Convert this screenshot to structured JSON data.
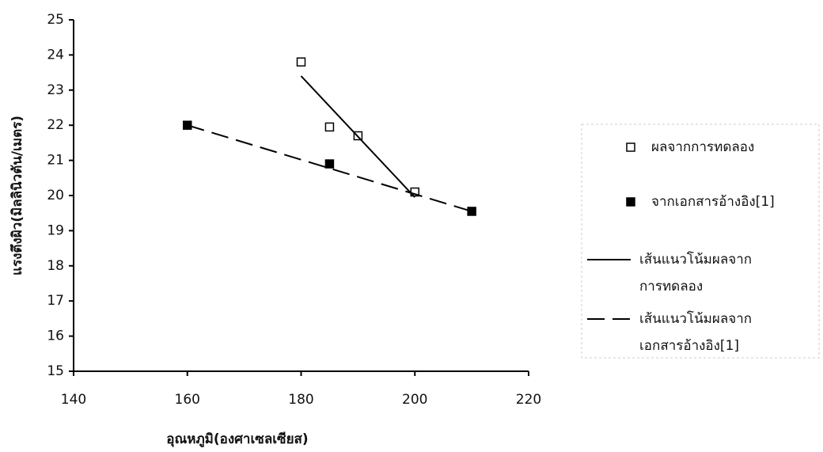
{
  "chart_data": {
    "type": "scatter",
    "xlabel": "อุณหภูมิ(องศาเซลเซียส)",
    "ylabel": "แรงตึงผิว(มิลลินิวตัน/เมตร)",
    "xlim": [
      140,
      220
    ],
    "xticks": [
      140,
      160,
      180,
      200,
      220
    ],
    "ylim": [
      15,
      25
    ],
    "yticks": [
      15,
      16,
      17,
      18,
      19,
      20,
      21,
      22,
      23,
      24,
      25
    ],
    "legend": "right",
    "series": [
      {
        "name": [
          "ผลจากการทดลอง"
        ],
        "color": "#000000",
        "marker": "open-square",
        "line": "none",
        "x": [
          180,
          185,
          190,
          200
        ],
        "values": [
          23.8,
          21.95,
          21.7,
          20.1
        ]
      },
      {
        "name": [
          "จากเอกสารอ้างอิง[1]"
        ],
        "color": "#000000",
        "marker": "filled-square",
        "line": "none",
        "x": [
          160,
          185,
          210
        ],
        "values": [
          22.0,
          20.9,
          19.55
        ]
      },
      {
        "name": [
          "เส้นแนวโน้มผลจาก",
          "การทดลอง"
        ],
        "color": "#000000",
        "marker": "none",
        "line": "solid",
        "x": [
          180,
          200
        ],
        "values": [
          23.4,
          19.95
        ]
      },
      {
        "name": [
          "เส้นแนวโน้มผลจาก",
          "เอกสารอ้างอิง[1]"
        ],
        "color": "#000000",
        "marker": "none",
        "line": "dashed",
        "x": [
          160,
          210
        ],
        "values": [
          22.0,
          19.55
        ]
      }
    ]
  }
}
